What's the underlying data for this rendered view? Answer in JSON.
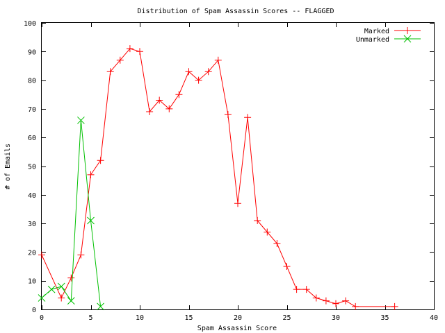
{
  "chart_data": {
    "type": "line",
    "title": "Distribution of Spam Assassin Scores -- FLAGGED",
    "xlabel": "Spam Assassin Score",
    "ylabel": "# of Emails",
    "xlim": [
      0,
      40
    ],
    "ylim": [
      0,
      100
    ],
    "xticks": [
      0,
      5,
      10,
      15,
      20,
      25,
      30,
      35,
      40
    ],
    "yticks": [
      0,
      10,
      20,
      30,
      40,
      50,
      60,
      70,
      80,
      90,
      100
    ],
    "grid": false,
    "legend_position": "top-right",
    "series": [
      {
        "name": "Marked",
        "color": "#ff0000",
        "marker": "plus",
        "x": [
          0,
          2,
          3,
          4,
          5,
          6,
          7,
          8,
          9,
          10,
          11,
          12,
          13,
          14,
          15,
          16,
          17,
          18,
          19,
          20,
          21,
          22,
          23,
          24,
          25,
          26,
          27,
          28,
          29,
          30,
          31,
          32,
          36
        ],
        "y": [
          19,
          4,
          11,
          19,
          47,
          52,
          83,
          87,
          91,
          90,
          69,
          73,
          70,
          75,
          83,
          80,
          83,
          87,
          68,
          37,
          67,
          31,
          27,
          23,
          15,
          7,
          7,
          4,
          3,
          2,
          3,
          1,
          1
        ]
      },
      {
        "name": "Unmarked",
        "color": "#00c000",
        "marker": "cross",
        "x": [
          0,
          1,
          2,
          3,
          4,
          5,
          6
        ],
        "y": [
          4,
          7,
          8,
          3,
          66,
          31,
          1
        ]
      }
    ]
  }
}
